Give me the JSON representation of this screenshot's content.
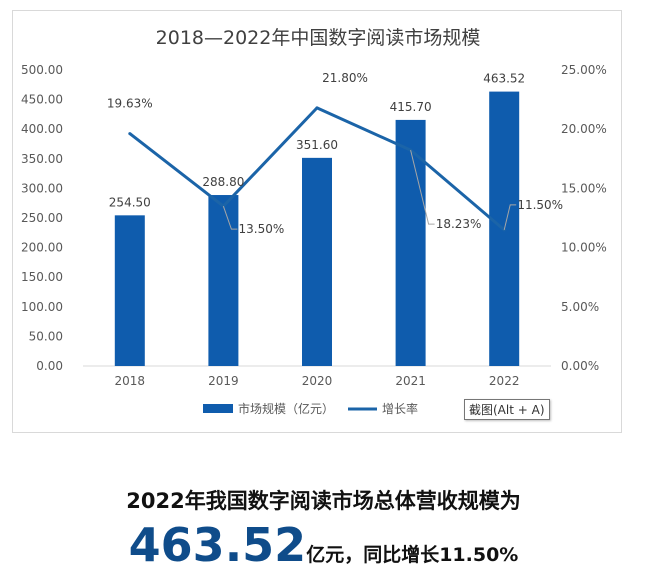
{
  "chart_data": {
    "type": "bar+line",
    "title": "2018—2022年中国数字阅读市场规模",
    "categories": [
      "2018",
      "2019",
      "2020",
      "2021",
      "2022"
    ],
    "series": [
      {
        "name": "市场规模（亿元）",
        "type": "bar",
        "axis": "left",
        "values": [
          254.5,
          288.8,
          351.6,
          415.7,
          463.52
        ],
        "labels": [
          "254.50",
          "288.80",
          "351.60",
          "415.70",
          "463.52"
        ]
      },
      {
        "name": "增长率",
        "type": "line",
        "axis": "right",
        "values": [
          19.63,
          13.5,
          21.8,
          18.23,
          11.5
        ],
        "labels": [
          "19.63%",
          "13.50%",
          "21.80%",
          "18.23%",
          "11.50%"
        ]
      }
    ],
    "y_left": {
      "min": 0,
      "max": 500,
      "step": 50,
      "ticks": [
        "0.00",
        "50.00",
        "100.00",
        "150.00",
        "200.00",
        "250.00",
        "300.00",
        "350.00",
        "400.00",
        "450.00",
        "500.00"
      ]
    },
    "y_right": {
      "min": 0,
      "max": 25,
      "step": 5,
      "ticks": [
        "0.00%",
        "5.00%",
        "10.00%",
        "15.00%",
        "20.00%",
        "25.00%"
      ]
    },
    "legend": [
      "市场规模（亿元）",
      "增长率"
    ],
    "legend_position": "bottom",
    "colors": {
      "bar": "#0f5cad",
      "line": "#1b64a8",
      "axis_text": "#595959",
      "title": "#404040"
    }
  },
  "tooltip": "截图(Alt + A)",
  "headline": "2022年我国数字阅读市场总体营收规模为",
  "summary": {
    "value": "463.52",
    "text": "亿元，同比增长11.50%"
  }
}
